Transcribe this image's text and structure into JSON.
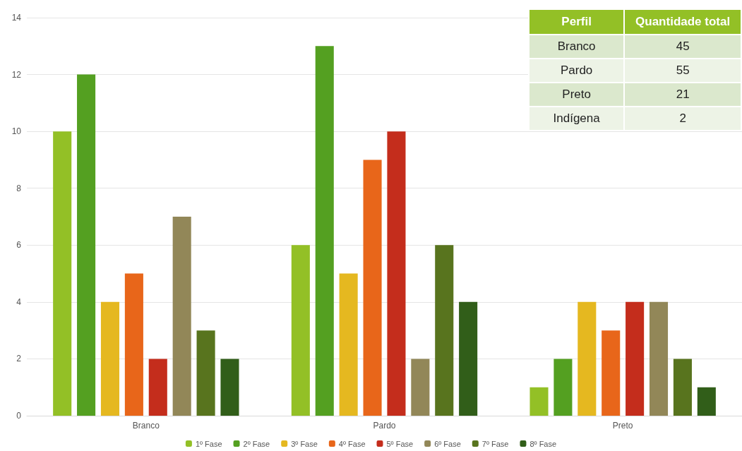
{
  "chart_data": [
    {
      "type": "bar",
      "categories": [
        "Branco",
        "Pardo",
        "Preto"
      ],
      "series": [
        {
          "name": "1º Fase",
          "color": "#93c026",
          "values": [
            10,
            6,
            1
          ]
        },
        {
          "name": "2º Fase",
          "color": "#54a021",
          "values": [
            12,
            13,
            2
          ]
        },
        {
          "name": "3º Fase",
          "color": "#e5b820",
          "values": [
            4,
            5,
            4
          ]
        },
        {
          "name": "4º Fase",
          "color": "#e8661a",
          "values": [
            5,
            9,
            3
          ]
        },
        {
          "name": "5º Fase",
          "color": "#c42d1c",
          "values": [
            2,
            10,
            4
          ]
        },
        {
          "name": "6º Fase",
          "color": "#928758",
          "values": [
            7,
            2,
            4
          ]
        },
        {
          "name": "7º Fase",
          "color": "#58741e",
          "values": [
            3,
            6,
            2
          ]
        },
        {
          "name": "8º Fase",
          "color": "#315e19",
          "values": [
            2,
            4,
            1
          ]
        }
      ],
      "ylim": [
        0,
        14
      ],
      "yticks": [
        0,
        2,
        4,
        6,
        8,
        10,
        12,
        14
      ],
      "grid": "y",
      "legend": "bottom"
    },
    {
      "type": "other",
      "xlabel": "Perfil",
      "ylabel": "Quantidade total",
      "categories": [
        "Branco",
        "Pardo",
        "Preto",
        "Indígena"
      ],
      "values": [
        45,
        55,
        21,
        2
      ],
      "data_labels": true
    }
  ]
}
